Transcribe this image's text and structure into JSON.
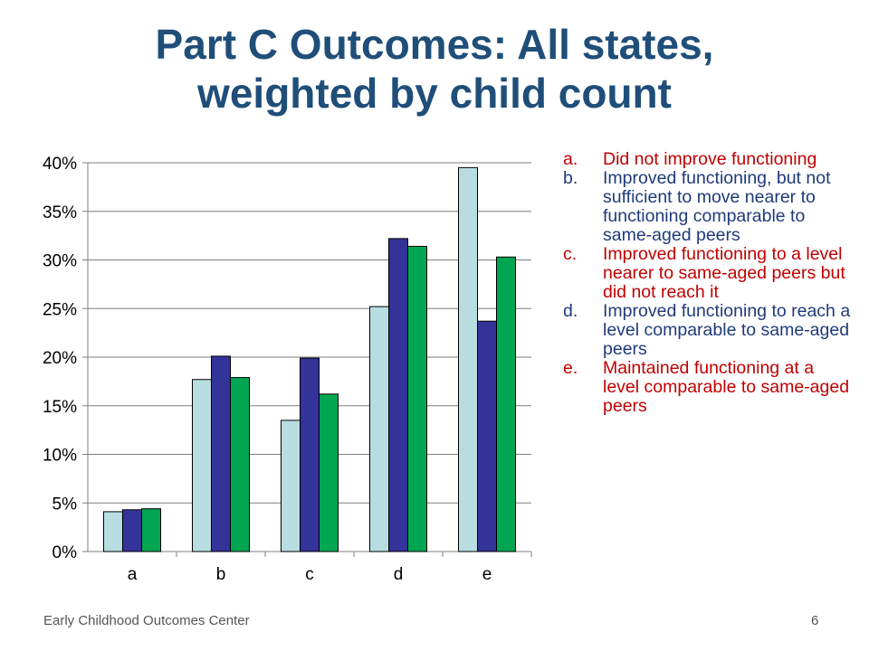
{
  "slide": {
    "title_line1": "Part C Outcomes: All states,",
    "title_line2": "weighted by child count",
    "footer": "Early Childhood Outcomes Center",
    "page_number": "6"
  },
  "legend": [
    {
      "letter": "a.",
      "text": "Did not improve functioning",
      "color": "#c00000"
    },
    {
      "letter": "b.",
      "text": "Improved functioning, but not sufficient to move nearer to functioning comparable to same-aged peers",
      "color": "#1f3a7a"
    },
    {
      "letter": "c.",
      "text": "Improved functioning to a level nearer to same-aged peers but did not reach it",
      "color": "#c00000"
    },
    {
      "letter": "d.",
      "text": "Improved functioning to reach a level comparable to same-aged peers",
      "color": "#1f3a7a"
    },
    {
      "letter": "e.",
      "text": "Maintained functioning at a level comparable to same-aged peers",
      "color": "#c00000"
    }
  ],
  "chart_data": {
    "type": "bar",
    "categories": [
      "a",
      "b",
      "c",
      "d",
      "e"
    ],
    "series": [
      {
        "values": [
          4.1,
          17.7,
          13.5,
          25.2,
          39.5
        ],
        "color": "#b7dde0"
      },
      {
        "values": [
          4.3,
          20.1,
          19.9,
          32.2,
          23.7
        ],
        "color": "#333399"
      },
      {
        "values": [
          4.4,
          17.9,
          16.2,
          31.4,
          30.3
        ],
        "color": "#00a651"
      }
    ],
    "ylim": [
      0,
      40
    ],
    "yticks": [
      0,
      5,
      10,
      15,
      20,
      25,
      30,
      35,
      40
    ],
    "ytick_labels": [
      "0%",
      "5%",
      "10%",
      "15%",
      "20%",
      "25%",
      "30%",
      "35%",
      "40%"
    ],
    "grid": true,
    "legend": "none"
  }
}
